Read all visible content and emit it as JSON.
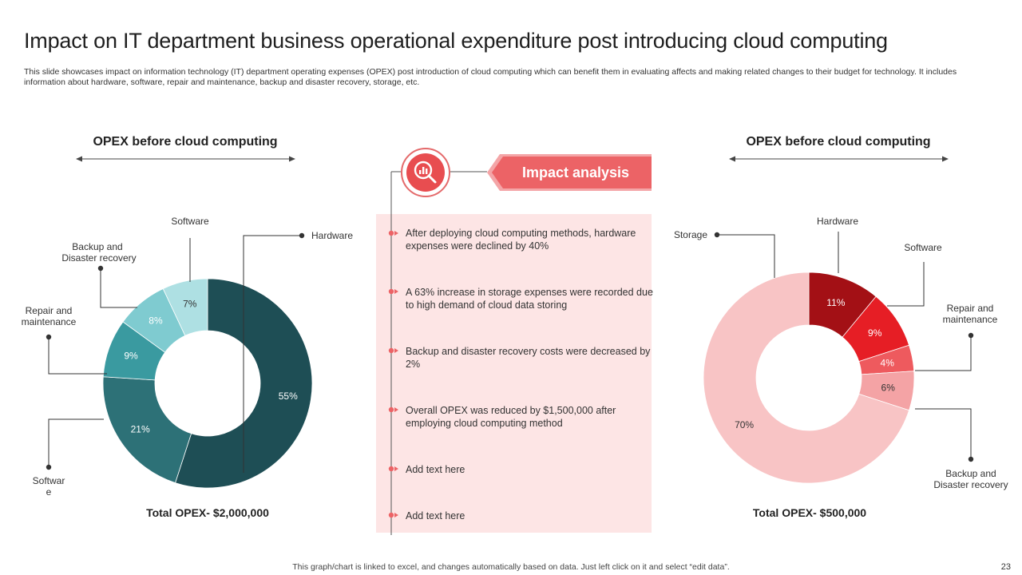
{
  "slide": {
    "title": "Impact on IT department business operational expenditure post introducing cloud computing",
    "subtitle": "This slide showcases impact on information technology (IT) department operating expenses (OPEX) post introduction of cloud computing which can benefit them in evaluating affects and making related changes to their budget for technology. It includes information about hardware, software, repair and maintenance, backup and disaster recovery, storage, etc.",
    "footer": "This graph/chart is linked to excel, and changes automatically based on data. Just left click on it and select “edit data”.",
    "page_number": "23"
  },
  "impact": {
    "banner_label": "Impact analysis",
    "icon": "magnifier-chart-icon",
    "items": [
      "After deploying cloud computing methods, hardware expenses were declined by 40%",
      "A 63% increase in storage expenses were recorded due to high demand of cloud data storing",
      "Backup and disaster recovery costs were decreased by 2%",
      "Overall OPEX was reduced by $1,500,000 after employing cloud computing method",
      "Add text here",
      "Add text here"
    ]
  },
  "chart_data": [
    {
      "type": "pie",
      "title": "OPEX before cloud computing",
      "total_label": "Total OPEX- $2,000,000",
      "categories": [
        "Hardware",
        "Softwar e",
        "Repair and maintenance",
        "Backup and Disaster recovery",
        "Software"
      ],
      "values": [
        55,
        21,
        9,
        8,
        7
      ],
      "value_labels": [
        "55%",
        "21%",
        "9%",
        "8%",
        "7%"
      ],
      "colors": [
        "#1e4e55",
        "#2d7177",
        "#3a9aa0",
        "#7fcbd0",
        "#aee0e3"
      ],
      "legend": "callouts"
    },
    {
      "type": "pie",
      "title": "OPEX before cloud computing",
      "total_label": "Total OPEX- $500,000",
      "categories": [
        "Hardware",
        "Software",
        "Repair and maintenance",
        "Backup and Disaster recovery",
        "Storage"
      ],
      "values": [
        11,
        9,
        4,
        6,
        70
      ],
      "value_labels": [
        "11%",
        "9%",
        "4%",
        "6%",
        "70%"
      ],
      "colors": [
        "#a31015",
        "#e61e25",
        "#ee5a5e",
        "#f4a3a5",
        "#f8c4c5"
      ],
      "legend": "callouts"
    }
  ]
}
